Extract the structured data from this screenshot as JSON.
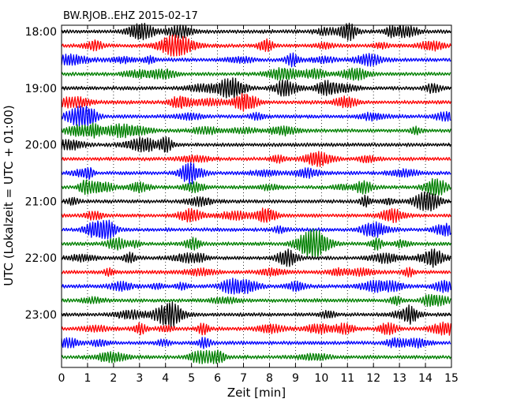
{
  "chart_data": {
    "type": "line",
    "subtype": "dayplot",
    "title": "BW.RJOB..EHZ 2015-02-17",
    "xlabel": "Zeit  [min]",
    "ylabel": "UTC (Lokalzeit = UTC + 01:00)",
    "xlim": [
      0,
      15
    ],
    "x_ticks": [
      0,
      1,
      2,
      3,
      4,
      5,
      6,
      7,
      8,
      9,
      10,
      11,
      12,
      13,
      14,
      15
    ],
    "x_tick_labels": [
      "0",
      "1",
      "2",
      "3",
      "4",
      "5",
      "6",
      "7",
      "8",
      "9",
      "10",
      "11",
      "12",
      "13",
      "14",
      "15"
    ],
    "y_tick_labels": [
      "18:00",
      "19:00",
      "20:00",
      "21:00",
      "22:00",
      "23:00"
    ],
    "traces_per_hour": 4,
    "trace_count": 24,
    "x_grid": "dotted vertical lines at each minute",
    "trace_colors": [
      "#000000",
      "#ff0000",
      "#0000ff",
      "#008000"
    ]
  }
}
